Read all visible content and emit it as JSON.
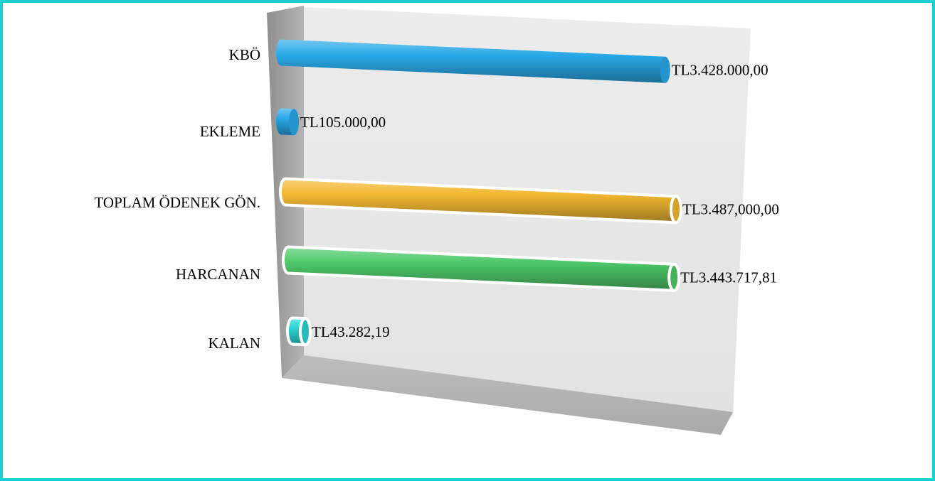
{
  "chart_data": {
    "type": "bar",
    "orientation": "horizontal",
    "style": "3d-cylinder",
    "categories": [
      "KBÖ",
      "EKLEME",
      "TOPLAM ÖDENEK GÖN.",
      "HARCANAN",
      "KALAN"
    ],
    "values": [
      3428000.0,
      105000.0,
      3487000.0,
      3443717.81,
      43282.19
    ],
    "value_labels": [
      "TL3.428.000,00",
      "TL105.000,00",
      "TL3.487,000,00",
      "TL3.443.717,81",
      "TL43.282,19"
    ],
    "colors": [
      "#29a9e8",
      "#29a9e8",
      "#f2b832",
      "#4ec96a",
      "#2cd6d6"
    ],
    "xlim": [
      0,
      3487000
    ],
    "grid": false,
    "legend": "none",
    "title": "",
    "xlabel": "",
    "ylabel": ""
  },
  "frame_color": "#1fcfcf"
}
